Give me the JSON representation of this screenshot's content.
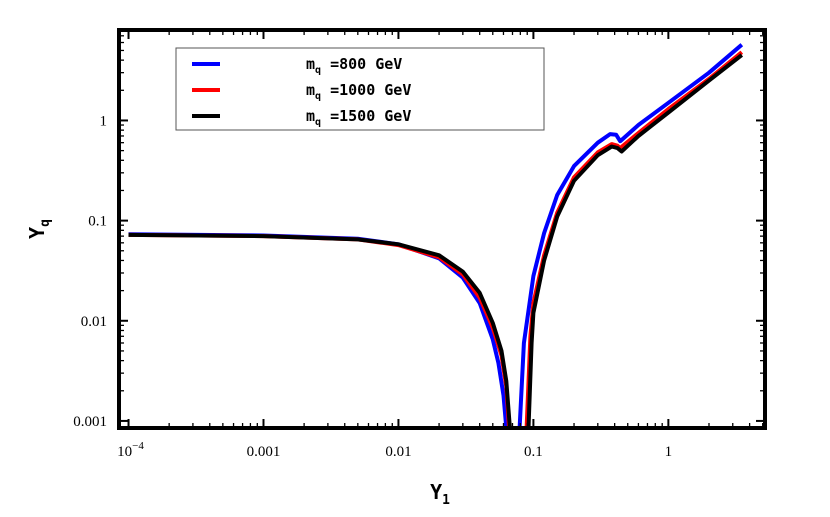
{
  "chart_data": {
    "type": "line",
    "title": "",
    "xlabel": {
      "main": "Y",
      "sub": "1"
    },
    "ylabel": {
      "main": "Y",
      "sub": "q"
    },
    "xscale": "log",
    "yscale": "log",
    "xlim": [
      8.5e-05,
      5.2
    ],
    "ylim": [
      0.00085,
      8.0
    ],
    "grid": false,
    "legend_position": "top-left",
    "x_ticks": [
      {
        "value": 0.0001,
        "label_base": "10",
        "label_exp": "−4"
      },
      {
        "value": 0.001,
        "label": "0.001"
      },
      {
        "value": 0.01,
        "label": "0.01"
      },
      {
        "value": 0.1,
        "label": "0.1"
      },
      {
        "value": 1,
        "label": "1"
      }
    ],
    "y_ticks": [
      {
        "value": 0.001,
        "label": "0.001"
      },
      {
        "value": 0.01,
        "label": "0.01"
      },
      {
        "value": 0.1,
        "label": "0.1"
      },
      {
        "value": 1,
        "label": "1"
      }
    ],
    "series": [
      {
        "name": "=800 GeV",
        "legend_main": "m",
        "legend_sub": "q",
        "legend_rest": "=800  GeV",
        "color": "#0000ff",
        "x": [
          0.0001,
          0.001,
          0.005,
          0.01,
          0.02,
          0.03,
          0.04,
          0.05,
          0.055,
          0.06,
          0.063
        ],
        "y": [
          0.073,
          0.071,
          0.066,
          0.058,
          0.042,
          0.027,
          0.015,
          0.0065,
          0.0038,
          0.0018,
          0.00085
        ],
        "x2": [
          0.079,
          0.085,
          0.1,
          0.12,
          0.15,
          0.2,
          0.3,
          0.37,
          0.41,
          0.44,
          0.6,
          1.0,
          2.0,
          3.5
        ],
        "y2": [
          0.00085,
          0.006,
          0.028,
          0.075,
          0.18,
          0.35,
          0.6,
          0.73,
          0.72,
          0.62,
          0.9,
          1.5,
          3.0,
          5.7
        ]
      },
      {
        "name": "=1000 GeV",
        "legend_main": "m",
        "legend_sub": "q",
        "legend_rest": "=1000  GeV",
        "color": "#ff0000",
        "x": [
          0.0001,
          0.001,
          0.005,
          0.01,
          0.02,
          0.03,
          0.04,
          0.05,
          0.058,
          0.063,
          0.066
        ],
        "y": [
          0.072,
          0.07,
          0.065,
          0.057,
          0.043,
          0.029,
          0.017,
          0.0085,
          0.0045,
          0.0022,
          0.00085
        ],
        "x2": [
          0.089,
          0.095,
          0.1,
          0.12,
          0.15,
          0.2,
          0.3,
          0.38,
          0.42,
          0.44,
          0.6,
          1.0,
          2.0,
          3.5
        ],
        "y2": [
          0.00085,
          0.007,
          0.015,
          0.045,
          0.12,
          0.27,
          0.48,
          0.58,
          0.56,
          0.53,
          0.75,
          1.3,
          2.6,
          4.8
        ]
      },
      {
        "name": "=1500 GeV",
        "legend_main": "m",
        "legend_sub": "q",
        "legend_rest": "=1500  GeV",
        "color": "#000000",
        "x": [
          0.0001,
          0.001,
          0.005,
          0.01,
          0.02,
          0.03,
          0.04,
          0.05,
          0.058,
          0.063,
          0.067
        ],
        "y": [
          0.072,
          0.07,
          0.065,
          0.058,
          0.045,
          0.031,
          0.019,
          0.0095,
          0.005,
          0.0025,
          0.00085
        ],
        "x2": [
          0.092,
          0.097,
          0.1,
          0.12,
          0.15,
          0.2,
          0.3,
          0.38,
          0.42,
          0.45,
          0.6,
          1.0,
          2.0,
          3.5
        ],
        "y2": [
          0.00085,
          0.006,
          0.012,
          0.04,
          0.11,
          0.25,
          0.45,
          0.55,
          0.53,
          0.49,
          0.7,
          1.2,
          2.5,
          4.5
        ]
      }
    ]
  }
}
